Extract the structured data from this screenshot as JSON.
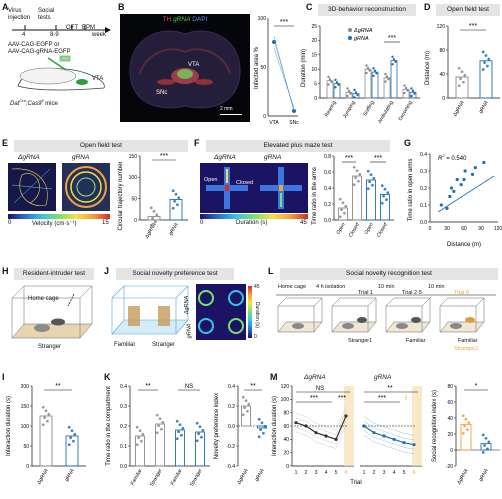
{
  "colors": {
    "gray": "#8a8a8a",
    "blue": "#1f6fb2",
    "light_blue": "#4fa3d9",
    "orange": "#f2a23a",
    "green": "#2e9e3a",
    "red": "#d43a3a",
    "title_bar": "#e4e4e4"
  },
  "panels": {
    "A": {
      "letter": "A",
      "steps": [
        "Virus",
        "injection"
      ],
      "t0": "4",
      "social": [
        "Social",
        "tests"
      ],
      "ages": "8-9",
      "oft": "OFT",
      "epm": "EPM",
      "week": "week",
      "vec1": "AAV-CAG-EGFP or",
      "vec2": "AAV-CAG-gRNA-EGFP",
      "vta": "VTA",
      "mouse_a": "Dat",
      "mouse_sup1": "Cre",
      "mouse_b": ";Cas9",
      "mouse_sup2": "fl",
      "mouse_c": " mice"
    },
    "B": {
      "letter": "B",
      "th": "TH",
      "grna": "gRNA",
      "dapi": "DAPI",
      "vta": "VTA",
      "snc": "SNc",
      "scale": "2 mm",
      "ylabel": "Infected area %",
      "yticks": [
        "0",
        "50",
        "100"
      ],
      "xcats": [
        "VTA",
        "SNc"
      ],
      "sig": "***"
    },
    "C": {
      "letter": "C",
      "title": "3D-behavior reconstruction",
      "ylabel": "Duration (min)",
      "yticks": [
        "0",
        "5",
        "10",
        "15",
        "20",
        "25"
      ],
      "legend": [
        "ΔgRNA",
        "gRNA"
      ],
      "cats": [
        "Rearing",
        "Jumping",
        "Sniffing",
        "Ambulating",
        "Grooming"
      ],
      "sig": "***"
    },
    "D": {
      "letter": "D",
      "title": "Open field test",
      "ylabel": "Distance (m)",
      "yticks": [
        "0",
        "40",
        "80",
        "120"
      ],
      "cats": [
        "ΔgRNA",
        "gRNA"
      ],
      "sig": "***"
    },
    "E": {
      "letter": "E",
      "title": "Open field test",
      "g1": "ΔgRNA",
      "g2": "gRNA",
      "cb_label": "Velocity (cm·s⁻¹)",
      "cb_min": "0",
      "cb_max": "15",
      "ylabel": "Circular trajectory number",
      "yticks": [
        "0",
        "50",
        "100",
        "150"
      ],
      "cats": [
        "ΔgRNA",
        "gRNA"
      ],
      "sig": "***"
    },
    "F": {
      "letter": "F",
      "title": "Elevated plus maze test",
      "g1": "ΔgRNA",
      "g2": "gRNA",
      "open": "Open",
      "closed": "Closed",
      "cb_label": "Duration (s)",
      "cb_min": "0",
      "cb_max": "45",
      "ylabel": "Time ratio in the arms",
      "yticks": [
        "0.0",
        "0.2",
        "0.4",
        "0.6",
        "0.8"
      ],
      "cats": [
        "Open",
        "Closed",
        "Open",
        "Closed"
      ],
      "sig1": "***",
      "sig2": "***"
    },
    "G": {
      "letter": "G",
      "r2": "R",
      "r2sup": "2",
      "r2val": " = 0.540",
      "ylabel": "Time ratio in open arms",
      "xlabel": "Distance (m)",
      "yticks": [
        "0.0",
        "0.1",
        "0.2",
        "0.3",
        "0.4"
      ],
      "xticks": [
        "0",
        "30",
        "60",
        "90",
        "120"
      ]
    },
    "H": {
      "letter": "H",
      "title": "Resident-intruder test",
      "home": "Home cage",
      "stranger": "Stranger"
    },
    "I": {
      "letter": "I",
      "ylabel": "Interaction duration (s)",
      "yticks": [
        "0",
        "50",
        "100",
        "150",
        "200"
      ],
      "cats": [
        "ΔgRNA",
        "gRNA"
      ],
      "sig": "**"
    },
    "J": {
      "letter": "J",
      "title": "Social novelty preference test",
      "familiar": "Familiar",
      "stranger": "Stranger",
      "g1": "ΔgRNA",
      "g2": "gRNA",
      "cb_label": "Duration (s)",
      "cb_min": "0",
      "cb_max": "45"
    },
    "K": {
      "letter": "K",
      "ylabel": "Time ratio in the compartment",
      "yticks": [
        "0.0",
        "0.1",
        "0.2",
        "0.3",
        "0.4"
      ],
      "cats": [
        "Familiar",
        "Stranger",
        "Familiar",
        "Stranger"
      ],
      "sig1": "**",
      "sig2": "NS",
      "ylabel2": "Novelty preference index",
      "yticks2": [
        "-0.4",
        "-0.2",
        "0.0",
        "0.2",
        "0.4"
      ],
      "cats2": [
        "ΔgRNA",
        "gRNA"
      ],
      "sig3": "**"
    },
    "L": {
      "letter": "L",
      "title": "Social novelty recognition test",
      "home": "Home cage",
      "iso": "4 h isolation",
      "trial1": "Trial 1",
      "t10a": "10 min",
      "trials": "Trial 2-5",
      "t10b": "10 min",
      "trial6": "Trial 6",
      "s1": "Stranger1",
      "fam": "Familiar",
      "fam2": "Familiar",
      "s2": "Stranger2"
    },
    "M": {
      "letter": "M",
      "g1": "ΔgRNA",
      "g2": "gRNA",
      "ylabel": "Interaction duration (s)",
      "yticks": [
        "0",
        "20",
        "40",
        "60",
        "80",
        "100",
        "120"
      ],
      "xticks": [
        "1",
        "2",
        "3",
        "4",
        "5",
        "6"
      ],
      "xlabel": "Trial",
      "sigNS": "NS",
      "sigA": "***",
      "sigB": "***",
      "sigC": "***",
      "sigD": "**",
      "sigE": "I",
      "ylabel2": "Social recognition index (s)",
      "yticks2": [
        "-20",
        "0",
        "20",
        "40",
        "60",
        "80"
      ],
      "cats2": [
        "ΔgRNA",
        "gRNA"
      ],
      "sig3": "*"
    }
  },
  "chart_data": [
    {
      "panel": "B",
      "type": "scatter",
      "categories": [
        "VTA",
        "SNc"
      ],
      "series": [
        {
          "values": [
            75,
            5
          ]
        }
      ],
      "ylim": [
        0,
        100
      ]
    },
    {
      "panel": "C",
      "type": "bar",
      "categories": [
        "Rearing",
        "Jumping",
        "Sniffing",
        "Ambulating",
        "Grooming"
      ],
      "series": [
        {
          "name": "ΔgRNA",
          "values": [
            6,
            2,
            10,
            7,
            3
          ]
        },
        {
          "name": "gRNA",
          "values": [
            5,
            1.5,
            9,
            13,
            2
          ]
        }
      ],
      "ylim": [
        0,
        25
      ]
    },
    {
      "panel": "D",
      "type": "bar",
      "categories": [
        "ΔgRNA",
        "gRNA"
      ],
      "values": [
        35,
        62
      ],
      "ylim": [
        0,
        120
      ]
    },
    {
      "panel": "E",
      "type": "bar",
      "categories": [
        "ΔgRNA",
        "gRNA"
      ],
      "values": [
        8,
        48
      ],
      "ylim": [
        0,
        150
      ]
    },
    {
      "panel": "F",
      "type": "bar",
      "categories": [
        "Open",
        "Closed",
        "Open",
        "Closed"
      ],
      "values": [
        0.15,
        0.55,
        0.5,
        0.32
      ],
      "ylim": [
        0,
        0.8
      ]
    },
    {
      "panel": "G",
      "type": "scatter",
      "x": [
        20,
        30,
        35,
        38,
        42,
        48,
        55,
        60,
        62,
        75,
        80,
        95
      ],
      "y": [
        0.1,
        0.08,
        0.15,
        0.2,
        0.18,
        0.25,
        0.22,
        0.25,
        0.3,
        0.28,
        0.32,
        0.35
      ],
      "xlim": [
        0,
        120
      ],
      "ylim": [
        0,
        0.4
      ]
    },
    {
      "panel": "I",
      "type": "bar",
      "categories": [
        "ΔgRNA",
        "gRNA"
      ],
      "values": [
        125,
        75
      ],
      "ylim": [
        0,
        200
      ]
    },
    {
      "panel": "K",
      "type": "bar",
      "categories": [
        "Familiar",
        "Stranger",
        "Familiar",
        "Stranger"
      ],
      "values": [
        0.15,
        0.21,
        0.18,
        0.17
      ],
      "ylim": [
        0,
        0.4
      ]
    },
    {
      "panel": "K2",
      "type": "bar",
      "categories": [
        "ΔgRNA",
        "gRNA"
      ],
      "values": [
        0.2,
        -0.02
      ],
      "ylim": [
        -0.4,
        0.4
      ]
    },
    {
      "panel": "M",
      "type": "line",
      "x": [
        1,
        2,
        3,
        4,
        5,
        6
      ],
      "series": [
        {
          "name": "ΔgRNA",
          "values": [
            65,
            60,
            50,
            45,
            40,
            75
          ]
        },
        {
          "name": "gRNA",
          "values": [
            60,
            50,
            45,
            40,
            35,
            32
          ]
        }
      ],
      "ylim": [
        0,
        120
      ]
    },
    {
      "panel": "M2",
      "type": "bar",
      "categories": [
        "ΔgRNA",
        "gRNA"
      ],
      "values": [
        32,
        8
      ],
      "ylim": [
        -20,
        80
      ]
    }
  ]
}
